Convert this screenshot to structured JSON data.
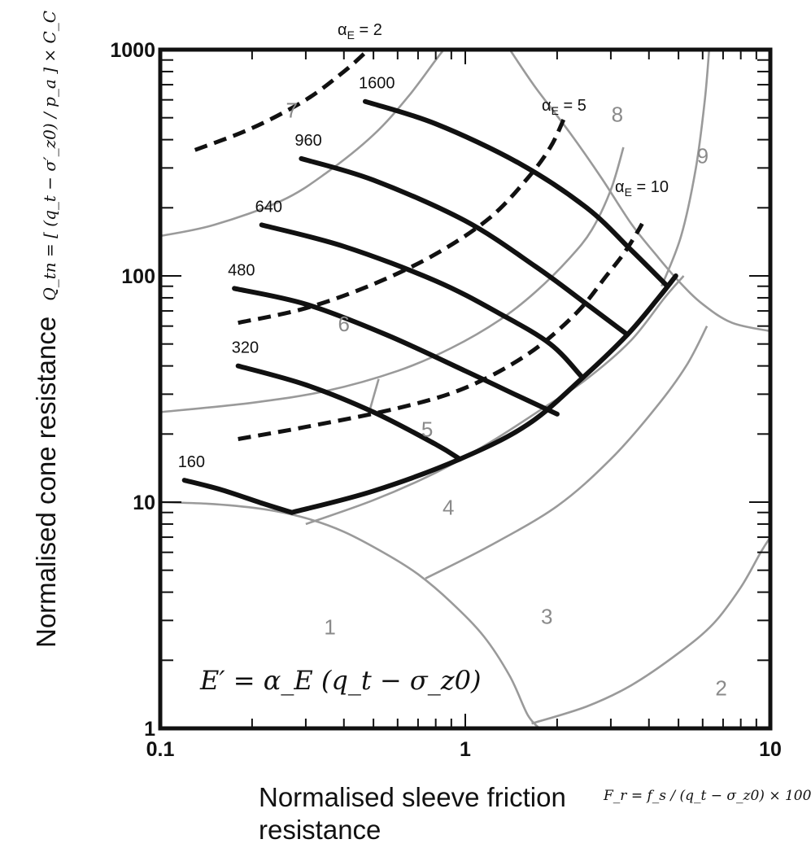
{
  "chart_data": {
    "type": "line",
    "xlabel": "Normalised sleeve friction resistance",
    "xlabel_formula": "F_r = f_s / (q_t − σ_z0) × 100",
    "ylabel": "Normalised cone resistance",
    "ylabel_formula": "Q_tn = [ (q_t − σ′_z0) / p_a ] × C_C",
    "equation": "E′ = α_E (q_t − σ_z0)",
    "x_scale": "log",
    "y_scale": "log",
    "xlim": [
      0.1,
      10
    ],
    "ylim": [
      1,
      1000
    ],
    "x_ticks": [
      "0.1",
      "1",
      "10"
    ],
    "y_ticks": [
      "1",
      "10",
      "100",
      "1000"
    ],
    "grid": false,
    "zone_labels": [
      {
        "label": "1",
        "x": 0.36,
        "y": 2.6
      },
      {
        "label": "2",
        "x": 6.9,
        "y": 1.4
      },
      {
        "label": "3",
        "x": 1.85,
        "y": 2.9
      },
      {
        "label": "4",
        "x": 0.88,
        "y": 8.8
      },
      {
        "label": "5",
        "x": 0.75,
        "y": 19.5
      },
      {
        "label": "6",
        "x": 0.4,
        "y": 57
      },
      {
        "label": "7",
        "x": 0.27,
        "y": 500
      },
      {
        "label": "8",
        "x": 3.15,
        "y": 480
      },
      {
        "label": "9",
        "x": 6.0,
        "y": 315
      }
    ],
    "zone_boundaries": [
      {
        "name": "b1",
        "points": [
          [
            0.1,
            10
          ],
          [
            0.15,
            9.8
          ],
          [
            0.22,
            9.3
          ],
          [
            0.3,
            8.5
          ],
          [
            0.4,
            7.4
          ],
          [
            0.55,
            5.9
          ],
          [
            0.7,
            4.8
          ],
          [
            0.9,
            3.6
          ],
          [
            1.15,
            2.55
          ],
          [
            1.4,
            1.7
          ],
          [
            1.6,
            1.15
          ],
          [
            1.75,
            1
          ]
        ]
      },
      {
        "name": "b2",
        "points": [
          [
            1.65,
            1.05
          ],
          [
            2.5,
            1.25
          ],
          [
            3.5,
            1.55
          ],
          [
            5,
            2.15
          ],
          [
            6.5,
            2.9
          ],
          [
            8,
            4.2
          ],
          [
            9.3,
            6
          ],
          [
            10,
            7
          ]
        ]
      },
      {
        "name": "b3",
        "points": [
          [
            0.74,
            4.6
          ],
          [
            1.2,
            6.4
          ],
          [
            2,
            9.6
          ],
          [
            3,
            15.5
          ],
          [
            4.2,
            26
          ],
          [
            5.3,
            40
          ],
          [
            6.2,
            60
          ]
        ]
      },
      {
        "name": "b4",
        "points": [
          [
            0.3,
            8
          ],
          [
            0.5,
            10.2
          ],
          [
            0.8,
            13.5
          ],
          [
            1.2,
            18.3
          ],
          [
            1.8,
            26
          ],
          [
            2.5,
            35
          ],
          [
            3.5,
            52
          ],
          [
            4.5,
            80
          ],
          [
            5.2,
            100
          ]
        ]
      },
      {
        "name": "b5",
        "points": [
          [
            0.1,
            25
          ],
          [
            0.2,
            27.5
          ],
          [
            0.35,
            31
          ],
          [
            0.6,
            38
          ],
          [
            0.9,
            48
          ],
          [
            1.3,
            64
          ],
          [
            1.7,
            85
          ],
          [
            2.2,
            120
          ],
          [
            2.6,
            160
          ],
          [
            3,
            240
          ],
          [
            3.3,
            370
          ]
        ]
      },
      {
        "name": "b6",
        "points": [
          [
            0.1,
            150
          ],
          [
            0.15,
            168
          ],
          [
            0.25,
            215
          ],
          [
            0.35,
            285
          ],
          [
            0.5,
            420
          ],
          [
            0.65,
            620
          ],
          [
            0.8,
            900
          ],
          [
            0.85,
            1000
          ]
        ]
      },
      {
        "name": "b7",
        "points": [
          [
            1.4,
            1000
          ],
          [
            1.7,
            680
          ],
          [
            2.2,
            430
          ],
          [
            2.8,
            270
          ],
          [
            3.5,
            170
          ],
          [
            4.2,
            125
          ],
          [
            5,
            95
          ],
          [
            6,
            75
          ],
          [
            7.5,
            62
          ],
          [
            10,
            57
          ]
        ]
      },
      {
        "name": "b8",
        "points": [
          [
            6.3,
            1000
          ],
          [
            6.1,
            600
          ],
          [
            5.7,
            300
          ],
          [
            5.1,
            150
          ],
          [
            4.4,
            90
          ]
        ]
      },
      {
        "name": "b9",
        "points": [
          [
            0.52,
            35
          ],
          [
            0.48,
            24
          ]
        ]
      }
    ],
    "series": [
      {
        "name": "160",
        "points": [
          [
            0.12,
            12.5
          ],
          [
            0.16,
            11.3
          ],
          [
            0.22,
            9.8
          ],
          [
            0.27,
            9.0
          ]
        ]
      },
      {
        "name": "320",
        "points": [
          [
            0.18,
            40
          ],
          [
            0.3,
            33
          ],
          [
            0.5,
            25
          ],
          [
            0.8,
            18
          ],
          [
            0.96,
            15.5
          ]
        ]
      },
      {
        "name": "480",
        "points": [
          [
            0.175,
            88
          ],
          [
            0.3,
            75
          ],
          [
            0.55,
            55
          ],
          [
            1.0,
            38
          ],
          [
            1.45,
            30
          ],
          [
            2.0,
            24.5
          ]
        ]
      },
      {
        "name": "640",
        "points": [
          [
            0.215,
            168
          ],
          [
            0.4,
            135
          ],
          [
            0.8,
            95
          ],
          [
            1.3,
            68
          ],
          [
            1.9,
            50
          ],
          [
            2.4,
            36
          ]
        ]
      },
      {
        "name": "960",
        "points": [
          [
            0.29,
            330
          ],
          [
            0.5,
            265
          ],
          [
            1.0,
            175
          ],
          [
            1.7,
            110
          ],
          [
            2.5,
            75
          ],
          [
            3.4,
            55
          ]
        ]
      },
      {
        "name": "1600",
        "points": [
          [
            0.47,
            590
          ],
          [
            0.8,
            470
          ],
          [
            1.5,
            315
          ],
          [
            2.5,
            200
          ],
          [
            3.5,
            130
          ],
          [
            4.6,
            90
          ]
        ]
      }
    ],
    "lower_envelope": [
      [
        0.27,
        9.0
      ],
      [
        0.5,
        11.2
      ],
      [
        0.96,
        15.5
      ],
      [
        1.6,
        22
      ],
      [
        2.4,
        35
      ],
      [
        3.4,
        55
      ],
      [
        4.3,
        80
      ],
      [
        4.9,
        100
      ]
    ],
    "alpha_E_curves": [
      {
        "label": "α_E = 2",
        "points": [
          [
            0.13,
            360
          ],
          [
            0.2,
            450
          ],
          [
            0.3,
            600
          ],
          [
            0.4,
            800
          ],
          [
            0.47,
            970
          ]
        ]
      },
      {
        "label": "α_E = 5",
        "points": [
          [
            0.18,
            62
          ],
          [
            0.3,
            72
          ],
          [
            0.5,
            92
          ],
          [
            0.8,
            125
          ],
          [
            1.2,
            180
          ],
          [
            1.6,
            270
          ],
          [
            1.9,
            370
          ],
          [
            2.1,
            490
          ]
        ]
      },
      {
        "label": "α_E = 10",
        "points": [
          [
            0.18,
            19
          ],
          [
            0.3,
            21.5
          ],
          [
            0.6,
            26
          ],
          [
            1.0,
            32
          ],
          [
            1.6,
            45
          ],
          [
            2.3,
            68
          ],
          [
            2.9,
            100
          ],
          [
            3.3,
            125
          ],
          [
            3.6,
            150
          ],
          [
            3.8,
            170
          ]
        ]
      }
    ]
  },
  "labels": {
    "alpha2": "α",
    "alpha2_sub": "E",
    "alpha2_rest": " = 2",
    "alpha5": "α",
    "alpha5_sub": "E",
    "alpha5_rest": " = 5",
    "alpha10": "α",
    "alpha10_sub": "E",
    "alpha10_rest": " = 10"
  },
  "colors": {
    "black_curve": "#111111",
    "zone_boundary": "#9a9a9a",
    "zone_text": "#8a8a8a"
  }
}
